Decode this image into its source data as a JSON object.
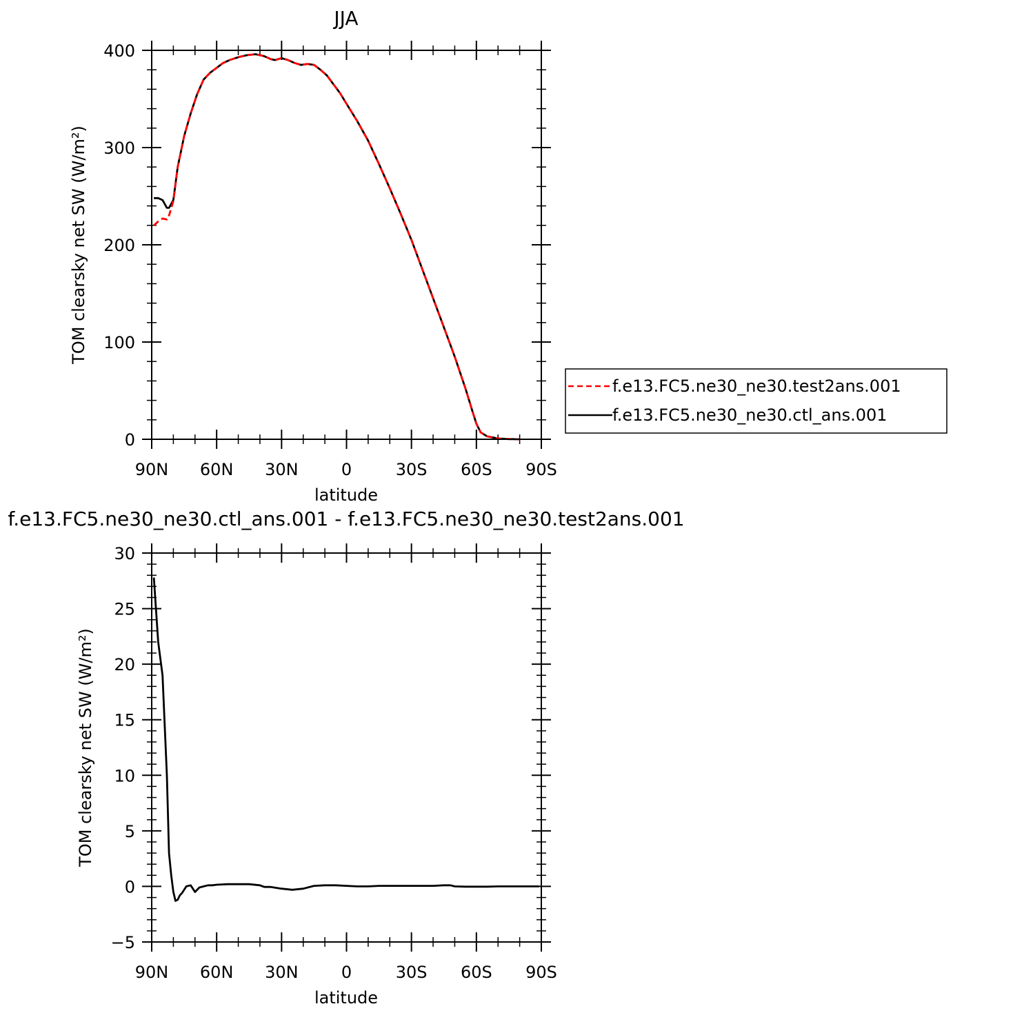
{
  "chart_data": [
    {
      "type": "line",
      "title": "JJA",
      "xlabel": "latitude",
      "ylabel": "TOM clearsky net SW (W/m²)",
      "xlim": [
        90,
        -90
      ],
      "ylim": [
        0,
        400
      ],
      "xticks": [
        90,
        60,
        30,
        0,
        -30,
        -60,
        -90
      ],
      "xtick_labels": [
        "90N",
        "60N",
        "30N",
        "0",
        "30S",
        "60S",
        "90S"
      ],
      "yticks": [
        0,
        100,
        200,
        300,
        400
      ],
      "ytick_labels": [
        "0",
        "100",
        "200",
        "300",
        "400"
      ],
      "legend_position": "right",
      "series": [
        {
          "name": "f.e13.FC5.ne30_ne30.test2ans.001",
          "color": "#ff0000",
          "dash": "dashed",
          "x": [
            89,
            87,
            85,
            83,
            82,
            80,
            78,
            75,
            72,
            69,
            66,
            63,
            60,
            57,
            54,
            50,
            46,
            42,
            38,
            35,
            33,
            30,
            27,
            24,
            21,
            18,
            15,
            12,
            9,
            6,
            3,
            0,
            -5,
            -10,
            -15,
            -20,
            -25,
            -30,
            -35,
            -40,
            -45,
            -50,
            -55,
            -58,
            -60,
            -62,
            -65,
            -70,
            -75,
            -80
          ],
          "y": [
            220,
            224,
            227,
            226,
            230,
            245,
            280,
            312,
            335,
            355,
            370,
            377,
            382,
            387,
            390,
            393,
            395,
            396,
            394,
            391,
            390,
            392,
            390,
            387,
            385,
            386,
            385,
            380,
            374,
            365,
            356,
            345,
            327,
            307,
            283,
            258,
            232,
            205,
            175,
            145,
            115,
            85,
            52,
            30,
            16,
            7,
            3,
            0.8,
            0.2,
            0
          ]
        },
        {
          "name": "f.e13.FC5.ne30_ne30.ctl_ans.001",
          "color": "#000000",
          "dash": "solid",
          "x": [
            89,
            87,
            85,
            83,
            82,
            80,
            78,
            75,
            72,
            69,
            66,
            63,
            60,
            57,
            54,
            50,
            46,
            42,
            38,
            35,
            33,
            30,
            27,
            24,
            21,
            18,
            15,
            12,
            9,
            6,
            3,
            0,
            -5,
            -10,
            -15,
            -20,
            -25,
            -30,
            -35,
            -40,
            -45,
            -50,
            -55,
            -58,
            -60,
            -62,
            -65,
            -70,
            -75,
            -80
          ],
          "y": [
            248,
            248,
            246,
            238,
            238,
            246,
            280,
            312,
            335,
            355,
            370,
            377,
            382,
            387,
            390,
            393,
            395,
            396,
            394,
            391,
            390,
            392,
            390,
            387,
            385,
            386,
            385,
            380,
            374,
            365,
            356,
            345,
            327,
            307,
            283,
            258,
            232,
            205,
            175,
            145,
            115,
            85,
            52,
            30,
            16,
            7,
            3,
            0.8,
            0.2,
            0
          ]
        }
      ]
    },
    {
      "type": "line",
      "title": "f.e13.FC5.ne30_ne30.ctl_ans.001 - f.e13.FC5.ne30_ne30.test2ans.001",
      "xlabel": "latitude",
      "ylabel": "TOM clearsky net SW (W/m²)",
      "xlim": [
        90,
        -90
      ],
      "ylim": [
        -5,
        30
      ],
      "xticks": [
        90,
        60,
        30,
        0,
        -30,
        -60,
        -90
      ],
      "xtick_labels": [
        "90N",
        "60N",
        "30N",
        "0",
        "30S",
        "60S",
        "90S"
      ],
      "yticks": [
        -5,
        0,
        5,
        10,
        15,
        20,
        25,
        30
      ],
      "ytick_labels": [
        "−5",
        "0",
        "5",
        "10",
        "15",
        "20",
        "25",
        "30"
      ],
      "series": [
        {
          "color": "#000000",
          "dash": "solid",
          "x": [
            89,
            87,
            85,
            83,
            82,
            81,
            80,
            79,
            78,
            77,
            76,
            74,
            72,
            70,
            68,
            66,
            64,
            62,
            60,
            55,
            50,
            45,
            40,
            38,
            35,
            30,
            25,
            20,
            15,
            10,
            5,
            0,
            -5,
            -10,
            -15,
            -20,
            -25,
            -30,
            -35,
            -40,
            -45,
            -48,
            -50,
            -55,
            -60,
            -65,
            -70,
            -80,
            -89
          ],
          "y": [
            27.8,
            22,
            19,
            10,
            3,
            1,
            -0.5,
            -1.3,
            -1.2,
            -0.8,
            -0.6,
            0,
            0.1,
            -0.5,
            -0.1,
            0,
            0.1,
            0.1,
            0.15,
            0.2,
            0.2,
            0.2,
            0.1,
            -0.05,
            -0.05,
            -0.2,
            -0.3,
            -0.2,
            0.05,
            0.1,
            0.1,
            0.05,
            0,
            0,
            0.05,
            0.05,
            0.05,
            0.05,
            0.05,
            0.05,
            0.1,
            0.1,
            0,
            -0.02,
            -0.02,
            -0.02,
            0,
            0,
            0
          ]
        }
      ]
    }
  ]
}
